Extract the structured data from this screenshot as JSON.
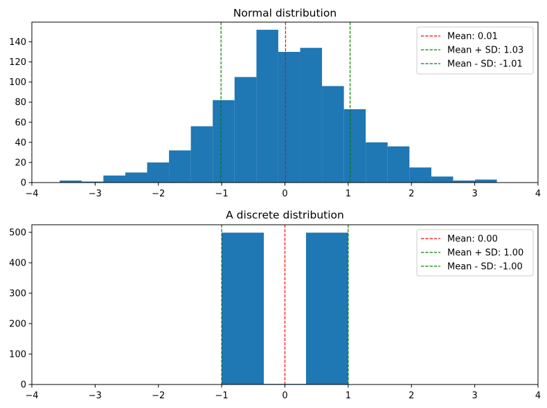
{
  "colors": {
    "bar": "#1f77b4",
    "mean_line": "#ff0000",
    "sd_line": "#008000",
    "axis": "#000000",
    "legend_border": "#cccccc"
  },
  "chart_data": [
    {
      "type": "bar",
      "subtype": "histogram",
      "title": "Normal distribution",
      "xlabel": "",
      "ylabel": "",
      "xlim": [
        -4,
        4
      ],
      "ylim": [
        0,
        159.6
      ],
      "grid": false,
      "xticks": [
        -4,
        -3,
        -2,
        -1,
        0,
        1,
        2,
        3,
        4
      ],
      "xtick_labels": [
        "−4",
        "−3",
        "−2",
        "−1",
        "0",
        "1",
        "2",
        "3",
        "4"
      ],
      "yticks": [
        0,
        20,
        40,
        60,
        80,
        100,
        120,
        140
      ],
      "ytick_labels": [
        "0",
        "20",
        "40",
        "60",
        "80",
        "100",
        "120",
        "140"
      ],
      "bin_edges": [
        -3.56,
        -3.214,
        -2.869,
        -2.523,
        -2.178,
        -1.832,
        -1.487,
        -1.141,
        -0.796,
        -0.45,
        -0.105,
        0.241,
        0.586,
        0.932,
        1.277,
        1.623,
        1.968,
        2.314,
        2.659,
        3.005,
        3.35
      ],
      "values": [
        2,
        1,
        7,
        10,
        20,
        32,
        56,
        82,
        105,
        152,
        130,
        134,
        96,
        73,
        40,
        36,
        15,
        6,
        2,
        3
      ],
      "vlines": [
        {
          "x": 0.01,
          "color": "#ff0000",
          "style": "dashed",
          "label": "Mean: 0.01"
        },
        {
          "x": 1.03,
          "color": "#008000",
          "style": "dashed",
          "label": "Mean + SD: 1.03"
        },
        {
          "x": -1.01,
          "color": "#008000",
          "style": "dashed",
          "label": "Mean - SD: -1.01"
        }
      ],
      "legend_placement": "top-right"
    },
    {
      "type": "bar",
      "subtype": "histogram",
      "title": "A discrete distribution",
      "xlabel": "",
      "ylabel": "",
      "xlim": [
        -4,
        4
      ],
      "ylim": [
        0,
        525
      ],
      "grid": false,
      "xticks": [
        -4,
        -3,
        -2,
        -1,
        0,
        1,
        2,
        3,
        4
      ],
      "xtick_labels": [
        "−4",
        "−3",
        "−2",
        "−1",
        "0",
        "1",
        "2",
        "3",
        "4"
      ],
      "yticks": [
        0,
        100,
        200,
        300,
        400,
        500
      ],
      "ytick_labels": [
        "0",
        "100",
        "200",
        "300",
        "400",
        "500"
      ],
      "bin_edges": [
        -1.0,
        -0.3333,
        0.3333,
        1.0
      ],
      "values": [
        499,
        2,
        499
      ],
      "vlines": [
        {
          "x": 0.0,
          "color": "#ff0000",
          "style": "dashed",
          "label": "Mean: 0.00"
        },
        {
          "x": 1.0,
          "color": "#008000",
          "style": "dashed",
          "label": "Mean + SD: 1.00"
        },
        {
          "x": -1.0,
          "color": "#008000",
          "style": "dashed",
          "label": "Mean - SD: -1.00"
        }
      ],
      "legend_placement": "top-right"
    }
  ]
}
